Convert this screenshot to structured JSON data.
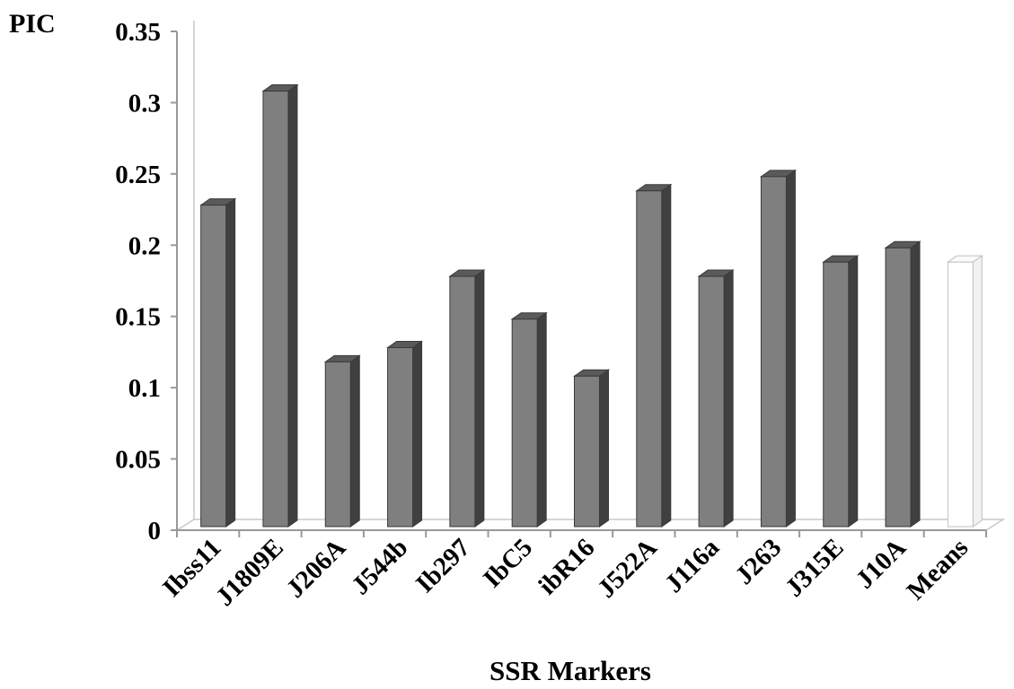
{
  "chart_data": {
    "type": "bar",
    "ylabel": "PIC",
    "xlabel": "SSR Markers",
    "categories": [
      "Ibss11",
      "J1809E",
      "J206A",
      "J544b",
      "Ib297",
      "IbC5",
      "ibR16",
      "J522A",
      "J116a",
      "J263",
      "J315E",
      "J10A",
      "Means"
    ],
    "values": [
      0.23,
      0.31,
      0.12,
      0.13,
      0.18,
      0.15,
      0.11,
      0.24,
      0.18,
      0.25,
      0.19,
      0.2,
      0.19
    ],
    "ylim": [
      0,
      0.35
    ],
    "yticks": [
      "0",
      "0.05",
      "0.1",
      "0.15",
      "0.2",
      "0.25",
      "0.3",
      "0.35"
    ],
    "grid": false,
    "style": "3d-column",
    "colors": {
      "bar": "#7f7f7f",
      "bar_side": "#404040",
      "bar_top": "#5a5a5a",
      "highlight_bar": "#ffffff",
      "axis": "#999999"
    }
  }
}
